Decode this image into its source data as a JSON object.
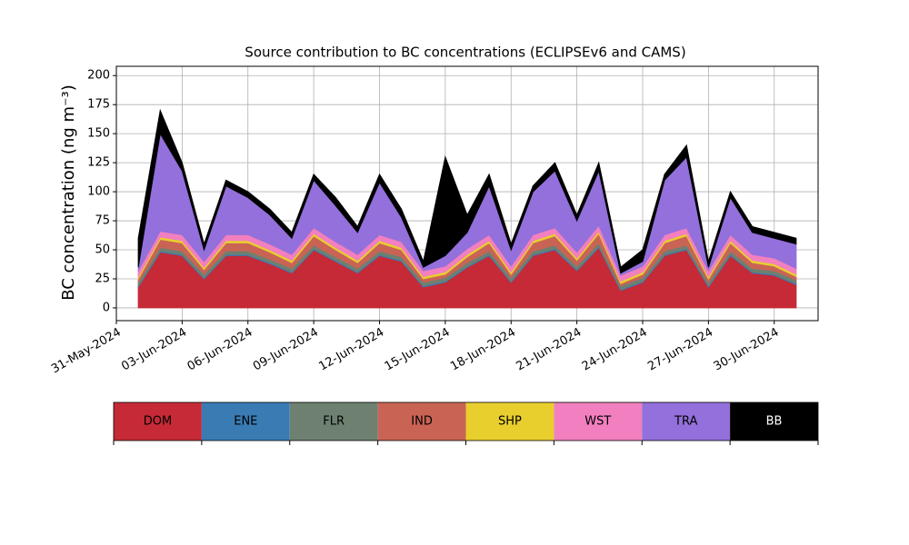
{
  "chart_data": {
    "type": "stacked_area",
    "title": "Source contribution to BC concentrations (ECLIPSEv6 and CAMS)",
    "y_label": "BC concentration (ng m⁻³)",
    "x": [
      "2024-06-01",
      "2024-06-02",
      "2024-06-03",
      "2024-06-04",
      "2024-06-05",
      "2024-06-06",
      "2024-06-07",
      "2024-06-08",
      "2024-06-09",
      "2024-06-10",
      "2024-06-11",
      "2024-06-12",
      "2024-06-13",
      "2024-06-14",
      "2024-06-15",
      "2024-06-16",
      "2024-06-17",
      "2024-06-18",
      "2024-06-19",
      "2024-06-20",
      "2024-06-21",
      "2024-06-22",
      "2024-06-23",
      "2024-06-24",
      "2024-06-25",
      "2024-06-26",
      "2024-06-27",
      "2024-06-28",
      "2024-06-29",
      "2024-06-30",
      "2024-07-01"
    ],
    "series": [
      {
        "name": "DOM",
        "color": "#c52a36",
        "values": [
          18,
          48,
          45,
          25,
          45,
          45,
          38,
          30,
          50,
          40,
          30,
          45,
          40,
          18,
          22,
          35,
          45,
          22,
          45,
          50,
          32,
          52,
          15,
          22,
          45,
          50,
          18,
          45,
          30,
          28,
          20
        ]
      },
      {
        "name": "ENE",
        "color": "#3a7bb3",
        "values": [
          1,
          1,
          1,
          1,
          1,
          1,
          1,
          1,
          1,
          1,
          1,
          1,
          1,
          1,
          1,
          1,
          1,
          1,
          1,
          1,
          1,
          1,
          1,
          1,
          1,
          1,
          1,
          1,
          1,
          1,
          1
        ]
      },
      {
        "name": "FLR",
        "color": "#6e8070",
        "values": [
          3,
          3,
          3,
          3,
          3,
          3,
          3,
          3,
          3,
          3,
          3,
          3,
          3,
          3,
          3,
          3,
          3,
          3,
          3,
          3,
          3,
          3,
          3,
          3,
          3,
          3,
          3,
          3,
          3,
          3,
          3
        ]
      },
      {
        "name": "IND",
        "color": "#c96455",
        "values": [
          3,
          7,
          7,
          4,
          7,
          7,
          6,
          5,
          8,
          6,
          5,
          7,
          6,
          3,
          3,
          5,
          7,
          3,
          7,
          8,
          5,
          8,
          2,
          3,
          7,
          8,
          3,
          7,
          5,
          4,
          3
        ]
      },
      {
        "name": "SHP",
        "color": "#e8cf2e",
        "values": [
          2,
          2,
          2,
          2,
          2,
          2,
          2,
          2,
          2,
          2,
          2,
          2,
          2,
          2,
          2,
          2,
          2,
          2,
          2,
          2,
          2,
          2,
          2,
          2,
          2,
          2,
          2,
          2,
          2,
          2,
          2
        ]
      },
      {
        "name": "WST",
        "color": "#f27fbf",
        "values": [
          5,
          5,
          5,
          5,
          5,
          5,
          5,
          5,
          5,
          5,
          5,
          5,
          5,
          5,
          5,
          5,
          5,
          5,
          5,
          5,
          5,
          5,
          5,
          5,
          5,
          5,
          5,
          5,
          5,
          5,
          5
        ]
      },
      {
        "name": "TRA",
        "color": "#9370db",
        "values": [
          3,
          84,
          55,
          10,
          42,
          32,
          25,
          14,
          41,
          31,
          19,
          45,
          21,
          3,
          9,
          14,
          42,
          14,
          37,
          49,
          27,
          47,
          2,
          4,
          47,
          61,
          3,
          32,
          19,
          17,
          21
        ]
      },
      {
        "name": "BB",
        "color": "#000000",
        "values": [
          25,
          20,
          7,
          5,
          5,
          5,
          5,
          5,
          5,
          7,
          5,
          7,
          7,
          5,
          85,
          15,
          10,
          5,
          5,
          7,
          5,
          7,
          5,
          10,
          5,
          10,
          5,
          5,
          5,
          5,
          5
        ]
      }
    ],
    "xlim": [
      "2024-05-31",
      "2024-07-02"
    ],
    "xticks": [
      {
        "value": "2024-05-31",
        "label": "31-May-2024"
      },
      {
        "value": "2024-06-03",
        "label": "03-Jun-2024"
      },
      {
        "value": "2024-06-06",
        "label": "06-Jun-2024"
      },
      {
        "value": "2024-06-09",
        "label": "09-Jun-2024"
      },
      {
        "value": "2024-06-12",
        "label": "12-Jun-2024"
      },
      {
        "value": "2024-06-15",
        "label": "15-Jun-2024"
      },
      {
        "value": "2024-06-18",
        "label": "18-Jun-2024"
      },
      {
        "value": "2024-06-21",
        "label": "21-Jun-2024"
      },
      {
        "value": "2024-06-24",
        "label": "24-Jun-2024"
      },
      {
        "value": "2024-06-27",
        "label": "27-Jun-2024"
      },
      {
        "value": "2024-06-30",
        "label": "30-Jun-2024"
      }
    ],
    "ylim": [
      -11,
      208
    ],
    "yticks": [
      0,
      25,
      50,
      75,
      100,
      125,
      150,
      175,
      200
    ],
    "grid": true,
    "legend": "bottom"
  }
}
